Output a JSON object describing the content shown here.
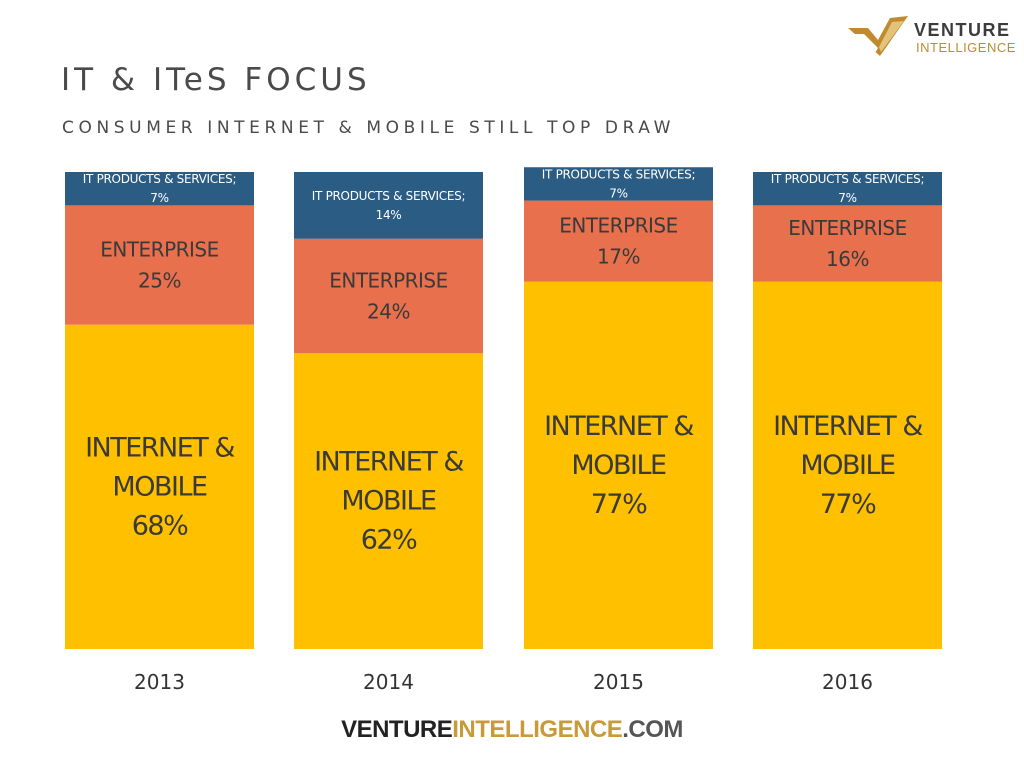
{
  "logo": {
    "line1": "VENTURE",
    "line2": "INTELLIGENCE"
  },
  "title": "IT & ITeS FOCUS",
  "subtitle": "CONSUMER INTERNET & MOBILE STILL TOP DRAW",
  "footer": {
    "part1": "VENTURE",
    "part2": "INTELLIGENCE",
    "part3": ".COM"
  },
  "chart_data": {
    "type": "bar",
    "stacked": true,
    "orientation": "vertical",
    "categories": [
      "2013",
      "2014",
      "2015",
      "2016"
    ],
    "series": [
      {
        "name": "INTERNET & MOBILE",
        "values": [
          68,
          62,
          77,
          77
        ],
        "labels": [
          [
            "INTERNET &",
            "MOBILE",
            "68%"
          ],
          [
            "INTERNET &",
            "MOBILE",
            "62%"
          ],
          [
            "INTERNET &",
            "MOBILE",
            "77%"
          ],
          [
            "INTERNET &",
            "MOBILE",
            "77%"
          ]
        ],
        "color": "#FFC000"
      },
      {
        "name": "ENTERPRISE",
        "values": [
          25,
          24,
          17,
          16
        ],
        "labels": [
          [
            "ENTERPRISE",
            "25%"
          ],
          [
            "ENTERPRISE",
            "24%"
          ],
          [
            "ENTERPRISE",
            "17%"
          ],
          [
            "ENTERPRISE",
            "16%"
          ]
        ],
        "color": "#E8704D"
      },
      {
        "name": "IT PRODUCTS & SERVICES",
        "values": [
          7,
          14,
          7,
          7
        ],
        "labels": [
          [
            "IT PRODUCTS & SERVICES;",
            "7%"
          ],
          [
            "IT PRODUCTS & SERVICES;",
            "14%"
          ],
          [
            "IT PRODUCTS & SERVICES;",
            "7%"
          ],
          [
            "IT PRODUCTS & SERVICES;",
            "7%"
          ]
        ],
        "color": "#2B5D84"
      }
    ],
    "ylim": [
      0,
      100
    ],
    "grid": false,
    "legend": "none"
  },
  "colors": {
    "title_text": "#4a4a4a",
    "label_dark": "#3a3a3a",
    "label_light": "#ffffff",
    "axis_text": "#333333"
  }
}
